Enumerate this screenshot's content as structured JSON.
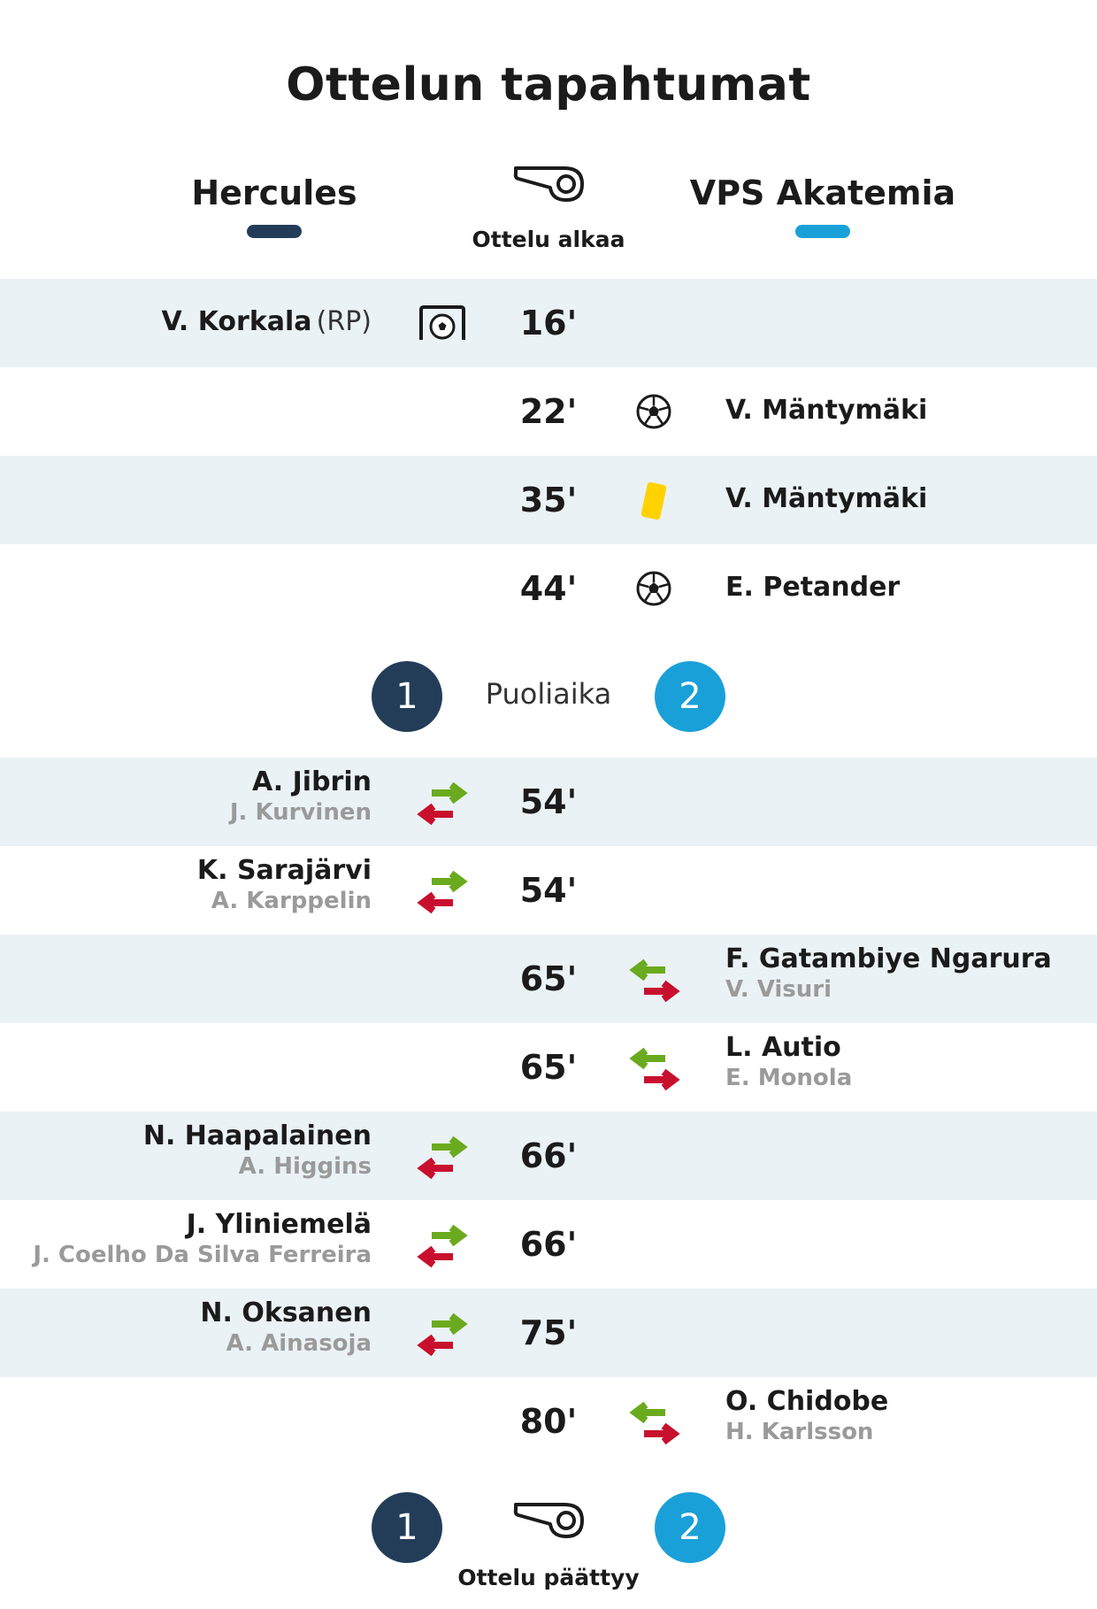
{
  "title": "Ottelun tapahtumat",
  "home_team": {
    "name": "Hercules",
    "color": "#233d59"
  },
  "away_team": {
    "name": "VPS Akatemia",
    "color": "#1aa0d8"
  },
  "start_label": "Ottelu alkaa",
  "events": [
    {
      "minute": "16'",
      "side": "home",
      "type": "penalty-goal",
      "player": "V. Korkala",
      "note": "(RP)"
    },
    {
      "minute": "22'",
      "side": "away",
      "type": "goal",
      "player": "V. Mäntymäki"
    },
    {
      "minute": "35'",
      "side": "away",
      "type": "yellow-card",
      "player": "V. Mäntymäki"
    }
  ],
  "events_after": {
    "e44": {
      "minute": "44'",
      "side": "away",
      "type": "goal",
      "player": "E. Petander"
    }
  },
  "halftime": {
    "label": "Puoliaika",
    "home_score": "1",
    "away_score": "2"
  },
  "subs": [
    {
      "minute": "54'",
      "side": "home",
      "in": "A. Jibrin",
      "out": "J. Kurvinen"
    },
    {
      "minute": "54'",
      "side": "home",
      "in": "K. Sarajärvi",
      "out": "A. Karppelin"
    },
    {
      "minute": "65'",
      "side": "away",
      "in": "F. Gatambiye Ngarura",
      "out": "V. Visuri"
    },
    {
      "minute": "65'",
      "side": "away",
      "in": "L. Autio",
      "out": "E. Monola"
    },
    {
      "minute": "66'",
      "side": "home",
      "in": "N. Haapalainen",
      "out": "A. Higgins"
    },
    {
      "minute": "66'",
      "side": "home",
      "in": "J. Yliniemelä",
      "out": "J. Coelho Da Silva Ferreira"
    },
    {
      "minute": "75'",
      "side": "home",
      "in": "N. Oksanen",
      "out": "A. Ainasoja"
    },
    {
      "minute": "80'",
      "side": "away",
      "in": "O. Chidobe",
      "out": "H. Karlsson"
    }
  ],
  "fulltime": {
    "label": "Ottelu päättyy",
    "home_score": "1",
    "away_score": "2"
  },
  "icons": {
    "whistle": "whistle-icon",
    "goal": "soccer-ball-icon",
    "penalty": "penalty-goal-icon",
    "card": "yellow-card-icon",
    "sub": "substitution-icon"
  },
  "colors": {
    "shade": "#eaf2f6",
    "sub_in": "#6aaa1e",
    "sub_out": "#c8102e",
    "yellow": "#ffd200"
  }
}
